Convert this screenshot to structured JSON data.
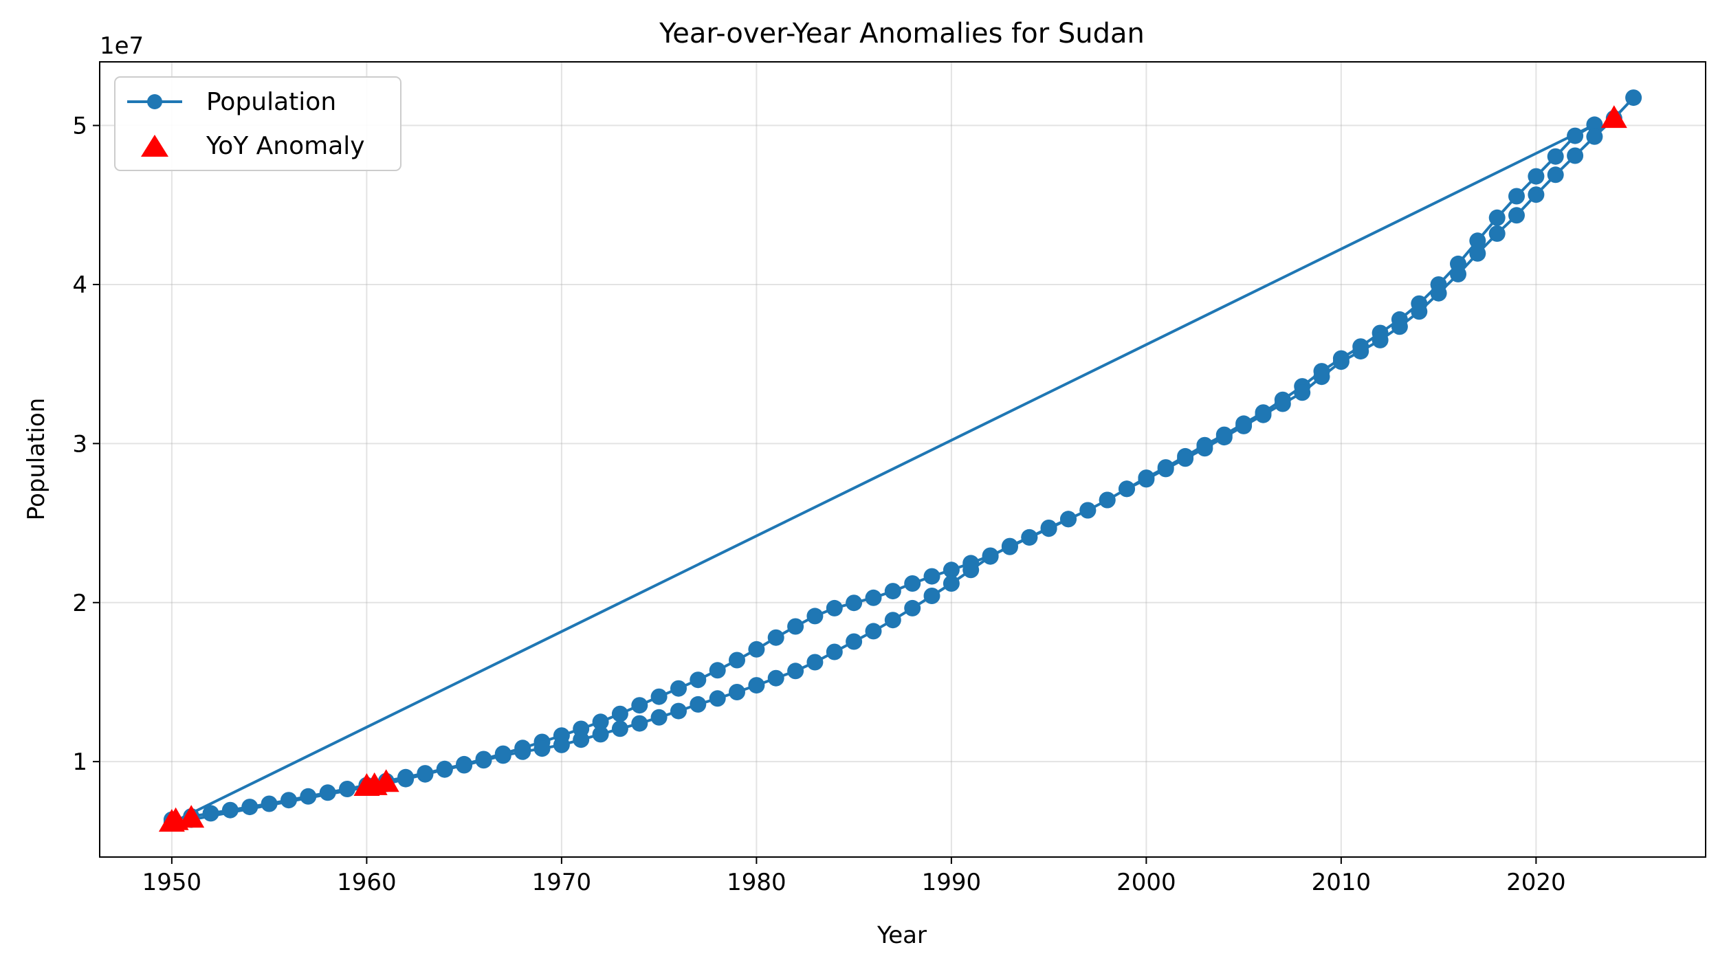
{
  "chart_data": {
    "type": "line",
    "title": "Year-over-Year Anomalies for Sudan",
    "xlabel": "Year",
    "ylabel": "Population",
    "y_offset_label": "1e7",
    "y_multiplier": 10000000,
    "xlim": [
      1946.3,
      2028.7
    ],
    "ylim": [
      4.0,
      54.0
    ],
    "x_ticks": [
      1950,
      1960,
      1970,
      1980,
      1990,
      2000,
      2010,
      2020
    ],
    "x_tick_labels": [
      "1950",
      "1960",
      "1970",
      "1980",
      "1990",
      "2000",
      "2010",
      "2020"
    ],
    "y_ticks": [
      10,
      20,
      30,
      40,
      50
    ],
    "y_tick_labels": [
      "1",
      "2",
      "3",
      "4",
      "5"
    ],
    "grid": true,
    "legend_position": "top-left",
    "series": [
      {
        "name": "Population",
        "color": "#1f77b4",
        "marker": "circle",
        "points": [
          [
            1950,
            6.35
          ],
          [
            1951,
            6.55
          ],
          [
            1952,
            6.75
          ],
          [
            1953,
            6.95
          ],
          [
            1954,
            7.15
          ],
          [
            1955,
            7.35
          ],
          [
            1956,
            7.58
          ],
          [
            1957,
            7.81
          ],
          [
            1958,
            8.05
          ],
          [
            1959,
            8.28
          ],
          [
            1960,
            8.52
          ],
          [
            1961,
            8.77
          ],
          [
            1962,
            9.02
          ],
          [
            1963,
            9.27
          ],
          [
            1964,
            9.54
          ],
          [
            1965,
            9.84
          ],
          [
            1966,
            10.16
          ],
          [
            1967,
            10.5
          ],
          [
            1968,
            10.86
          ],
          [
            1969,
            11.24
          ],
          [
            1970,
            11.64
          ],
          [
            1971,
            12.06
          ],
          [
            1972,
            12.5
          ],
          [
            1973,
            13.0
          ],
          [
            1974,
            13.54
          ],
          [
            1975,
            14.08
          ],
          [
            1976,
            14.6
          ],
          [
            1977,
            15.14
          ],
          [
            1978,
            15.74
          ],
          [
            1979,
            16.38
          ],
          [
            1980,
            17.06
          ],
          [
            1981,
            17.8
          ],
          [
            1982,
            18.5
          ],
          [
            1983,
            19.15
          ],
          [
            1984,
            19.65
          ],
          [
            1985,
            19.98
          ],
          [
            1986,
            20.3
          ],
          [
            1987,
            20.72
          ],
          [
            1988,
            21.2
          ],
          [
            1989,
            21.65
          ],
          [
            1990,
            22.05
          ],
          [
            1991,
            22.48
          ],
          [
            1992,
            22.95
          ],
          [
            1993,
            23.5
          ],
          [
            1994,
            24.1
          ],
          [
            1995,
            24.7
          ],
          [
            1996,
            25.25
          ],
          [
            1997,
            25.8
          ],
          [
            1998,
            26.45
          ],
          [
            1999,
            27.15
          ],
          [
            2000,
            27.85
          ],
          [
            2001,
            28.5
          ],
          [
            2002,
            29.2
          ],
          [
            2003,
            29.9
          ],
          [
            2004,
            30.55
          ],
          [
            2005,
            31.25
          ],
          [
            2006,
            31.95
          ],
          [
            2007,
            32.75
          ],
          [
            2008,
            33.6
          ],
          [
            2009,
            34.55
          ],
          [
            2010,
            35.35
          ],
          [
            2011,
            36.1
          ],
          [
            2012,
            36.95
          ],
          [
            2013,
            37.8
          ],
          [
            2014,
            38.8
          ],
          [
            2015,
            40.0
          ],
          [
            2016,
            41.3
          ],
          [
            2017,
            42.75
          ],
          [
            2018,
            44.2
          ],
          [
            2019,
            45.55
          ],
          [
            2020,
            46.8
          ],
          [
            2021,
            48.05
          ],
          [
            2022,
            49.35
          ],
          [
            2023,
            50.05
          ],
          [
            1950,
            6.15
          ],
          [
            1951,
            6.35
          ],
          [
            1960,
            8.4
          ],
          [
            1961,
            8.6
          ],
          [
            1962,
            8.9
          ],
          [
            1963,
            9.2
          ],
          [
            1964,
            9.5
          ],
          [
            1965,
            9.77
          ],
          [
            1966,
            10.08
          ],
          [
            1967,
            10.38
          ],
          [
            1968,
            10.62
          ],
          [
            1969,
            10.82
          ],
          [
            1970,
            11.05
          ],
          [
            1971,
            11.38
          ],
          [
            1972,
            11.72
          ],
          [
            1973,
            12.07
          ],
          [
            1974,
            12.4
          ],
          [
            1975,
            12.78
          ],
          [
            1976,
            13.18
          ],
          [
            1977,
            13.6
          ],
          [
            1978,
            13.97
          ],
          [
            1979,
            14.37
          ],
          [
            1980,
            14.8
          ],
          [
            1981,
            15.25
          ],
          [
            1982,
            15.7
          ],
          [
            1983,
            16.25
          ],
          [
            1984,
            16.9
          ],
          [
            1985,
            17.55
          ],
          [
            1986,
            18.2
          ],
          [
            1987,
            18.9
          ],
          [
            1988,
            19.65
          ],
          [
            1989,
            20.42
          ],
          [
            1990,
            21.2
          ],
          [
            1991,
            22.05
          ],
          [
            1992,
            22.9
          ],
          [
            1993,
            23.55
          ],
          [
            1994,
            24.1
          ],
          [
            1995,
            24.65
          ],
          [
            1996,
            25.25
          ],
          [
            1997,
            25.8
          ],
          [
            1998,
            26.45
          ],
          [
            1999,
            27.15
          ],
          [
            2000,
            27.75
          ],
          [
            2001,
            28.4
          ],
          [
            2002,
            29.05
          ],
          [
            2003,
            29.7
          ],
          [
            2004,
            30.4
          ],
          [
            2005,
            31.1
          ],
          [
            2006,
            31.8
          ],
          [
            2007,
            32.5
          ],
          [
            2008,
            33.2
          ],
          [
            2009,
            34.2
          ],
          [
            2010,
            35.15
          ],
          [
            2011,
            35.8
          ],
          [
            2012,
            36.5
          ],
          [
            2013,
            37.35
          ],
          [
            2014,
            38.3
          ],
          [
            2015,
            39.45
          ],
          [
            2016,
            40.65
          ],
          [
            2017,
            41.95
          ],
          [
            2018,
            43.2
          ],
          [
            2019,
            44.35
          ],
          [
            2020,
            45.65
          ],
          [
            2021,
            46.9
          ],
          [
            2022,
            48.1
          ],
          [
            2023,
            49.3
          ],
          [
            2024,
            50.45
          ],
          [
            2025,
            51.75
          ]
        ]
      },
      {
        "name": "YoY Anomaly",
        "color": "#ff0000",
        "marker": "triangle",
        "points": [
          [
            1950,
            6.2
          ],
          [
            1950.2,
            6.3
          ],
          [
            1951,
            6.45
          ],
          [
            1960,
            8.45
          ],
          [
            1960.4,
            8.5
          ],
          [
            1961,
            8.7
          ],
          [
            2024,
            50.45
          ]
        ]
      }
    ]
  }
}
